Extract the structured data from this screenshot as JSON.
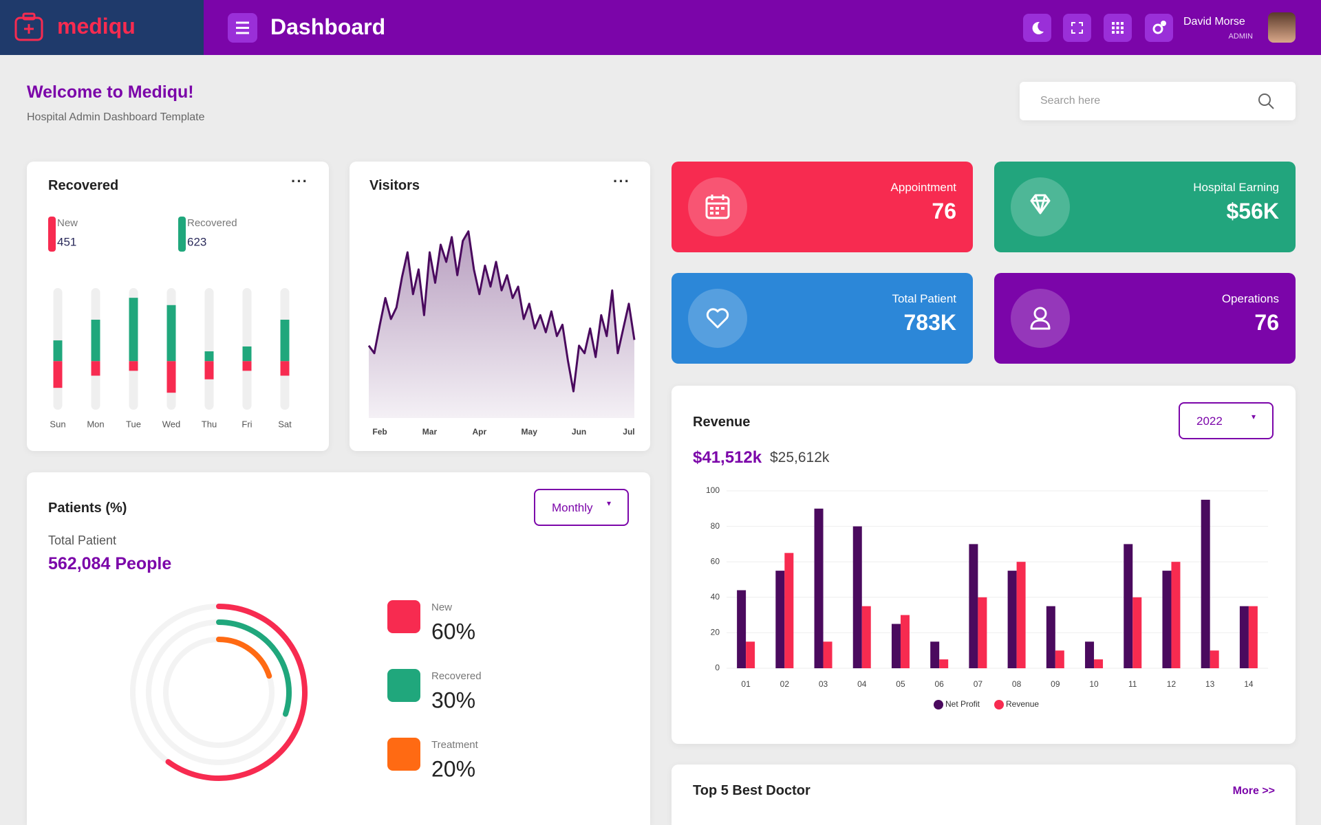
{
  "header": {
    "logo": "mediqu",
    "title": "Dashboard",
    "user": {
      "name": "David Morse",
      "role": "ADMIN"
    }
  },
  "welcome": {
    "title": "Welcome to Mediqu!",
    "subtitle": "Hospital Admin Dashboard Template"
  },
  "search": {
    "placeholder": "Search here"
  },
  "stats": [
    {
      "label": "Appointment",
      "value": "76",
      "color": "#f72b50"
    },
    {
      "label": "Hospital Earning",
      "value": "$56K",
      "color": "#22a57d"
    },
    {
      "label": "Total Patient",
      "value": "783K",
      "color": "#2c87d8"
    },
    {
      "label": "Operations",
      "value": "76",
      "color": "#7b05a9"
    }
  ],
  "doctors": {
    "title": "Top 5 Best Doctor",
    "more": "More >>"
  },
  "chart_data": [
    {
      "type": "bar",
      "title": "Recovered",
      "categories": [
        "Sun",
        "Mon",
        "Tue",
        "Wed",
        "Thu",
        "Fri",
        "Sat"
      ],
      "series": [
        {
          "name": "New",
          "total": 451,
          "color": "#f72b50",
          "values": [
            -22,
            -12,
            -8,
            -26,
            -15,
            -8,
            -12
          ]
        },
        {
          "name": "Recovered",
          "total": 623,
          "color": "#20a77c",
          "values": [
            17,
            34,
            52,
            46,
            8,
            12,
            34
          ]
        }
      ],
      "ylim": [
        -40,
        60
      ]
    },
    {
      "type": "area",
      "title": "Visitors",
      "color": "#4a0a5e",
      "x": [
        0,
        1,
        2,
        3,
        4,
        5,
        6,
        7,
        8,
        9,
        10,
        11,
        12,
        13,
        14,
        15,
        16,
        17,
        18,
        19,
        20,
        21,
        22,
        23,
        24,
        25,
        26,
        27,
        28,
        29,
        30,
        31,
        32,
        33,
        34,
        35,
        36,
        37,
        38,
        39,
        40,
        41,
        42,
        43,
        44,
        45,
        46,
        47,
        48
      ],
      "values": [
        38,
        34,
        49,
        63,
        52,
        58,
        74,
        87,
        65,
        78,
        54,
        87,
        71,
        91,
        82,
        95,
        75,
        93,
        98,
        78,
        65,
        80,
        69,
        82,
        67,
        75,
        63,
        69,
        52,
        60,
        47,
        54,
        45,
        56,
        43,
        49,
        30,
        14,
        38,
        34,
        47,
        32,
        54,
        43,
        67,
        34,
        47,
        60,
        41
      ],
      "xlim": [
        0,
        48
      ],
      "ylim": [
        0,
        100
      ],
      "xticks": [
        {
          "value": 2,
          "label": "Feb"
        },
        {
          "value": 11,
          "label": "Mar"
        },
        {
          "value": 20,
          "label": "Apr"
        },
        {
          "value": 29,
          "label": "May"
        },
        {
          "value": 38,
          "label": "Jun"
        },
        {
          "value": 47,
          "label": "Jul"
        }
      ]
    },
    {
      "type": "bar",
      "title": "Revenue",
      "year": "2022",
      "totals": [
        "$41,512k",
        "$25,612k"
      ],
      "categories": [
        "01",
        "02",
        "03",
        "04",
        "05",
        "06",
        "07",
        "08",
        "09",
        "10",
        "11",
        "12",
        "13",
        "14"
      ],
      "series": [
        {
          "name": "Net Profit",
          "color": "#4a0a5e",
          "values": [
            44,
            55,
            90,
            80,
            25,
            15,
            70,
            55,
            35,
            15,
            70,
            55,
            95,
            35
          ]
        },
        {
          "name": "Revenue",
          "color": "#f72b50",
          "values": [
            15,
            65,
            15,
            35,
            30,
            5,
            40,
            60,
            10,
            5,
            40,
            60,
            10,
            35
          ]
        }
      ],
      "ylim": [
        0,
        100
      ],
      "yticks": [
        0,
        20,
        40,
        60,
        80,
        100
      ],
      "grid": true,
      "legend": "bottom"
    },
    {
      "type": "radial",
      "title": "Patients (%)",
      "subtitle": "Total Patient",
      "total": "562,084 People",
      "filter": "Monthly",
      "categories": [
        "New",
        "Recovered",
        "Treatment"
      ],
      "values": [
        60,
        30,
        20
      ],
      "value_labels": [
        "60%",
        "30%",
        "20%"
      ],
      "colors": [
        "#f72b50",
        "#20a77c",
        "#ff6a13"
      ],
      "ylim": [
        0,
        100
      ]
    }
  ]
}
